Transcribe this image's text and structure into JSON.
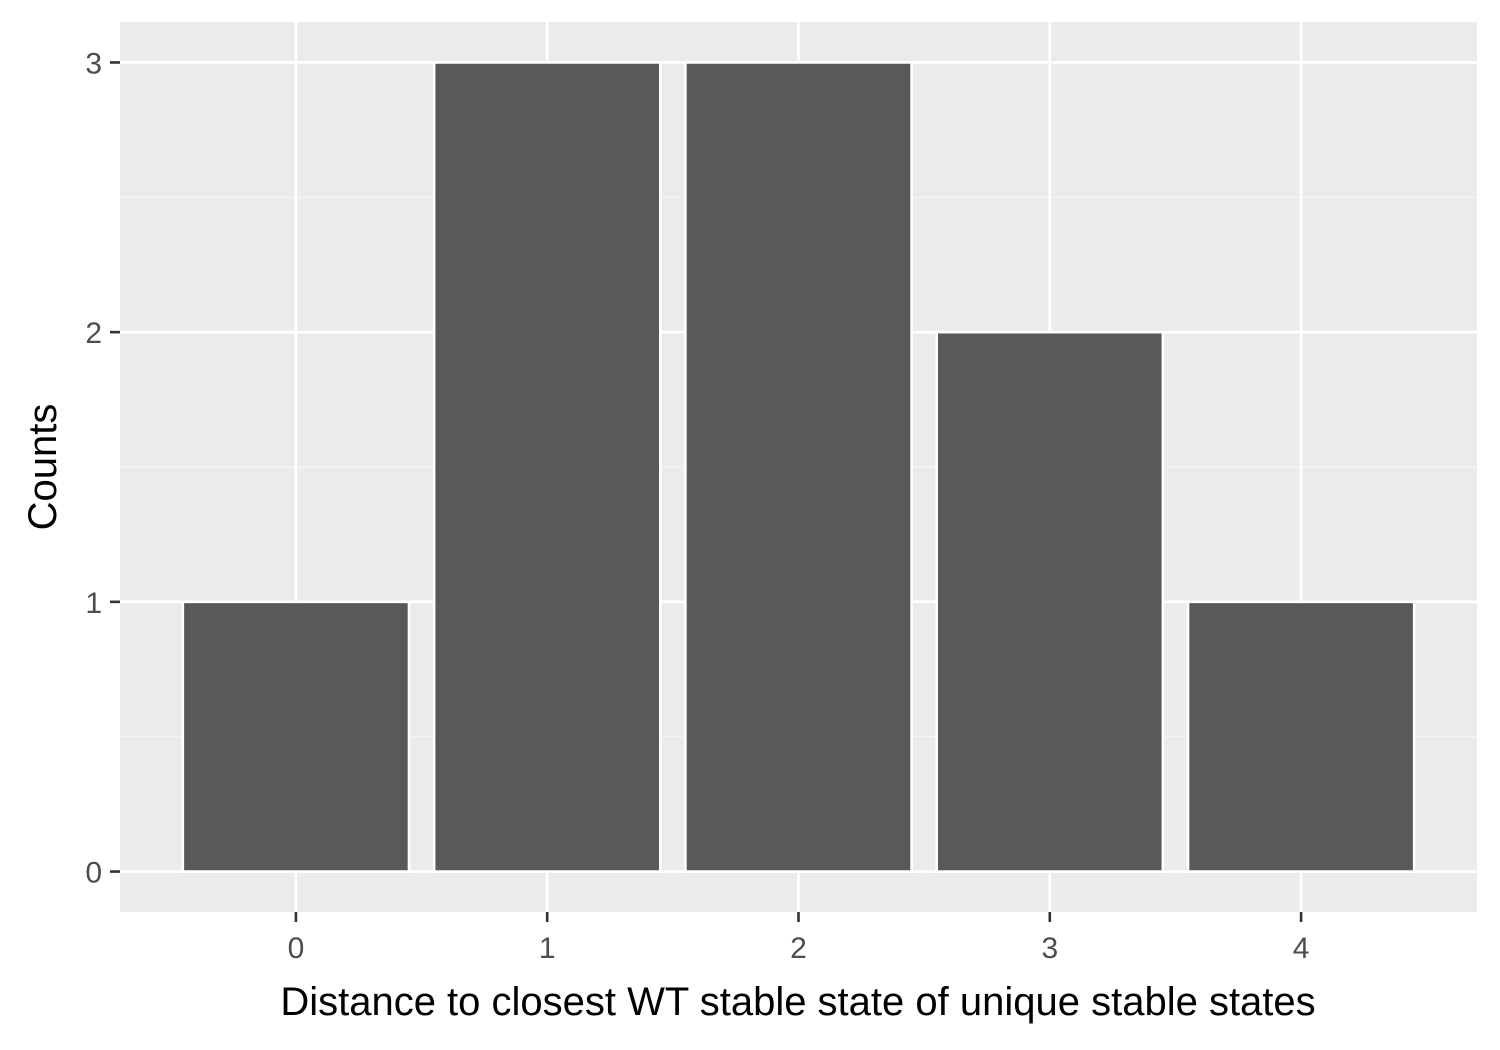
{
  "chart_data": {
    "type": "bar",
    "categories": [
      "0",
      "1",
      "2",
      "3",
      "4"
    ],
    "values": [
      1,
      3,
      3,
      2,
      1
    ],
    "title": "",
    "xlabel": "Distance to closest WT stable state of unique stable states",
    "ylabel": "Counts",
    "ylim": [
      -0.15,
      3.15
    ],
    "xlim": [
      -0.7,
      4.7
    ],
    "yticks": [
      "0",
      "1",
      "2",
      "3"
    ],
    "grid": true,
    "legend": "none",
    "colors": {
      "bar_fill": "#595959",
      "bar_outline": "#ffffff",
      "panel_background": "#ebebeb",
      "grid_major": "#ffffff",
      "grid_minor": "#f5f5f5",
      "tick_label": "#4d4d4d",
      "tick_mark": "#333333",
      "axis_title": "#000000"
    }
  }
}
